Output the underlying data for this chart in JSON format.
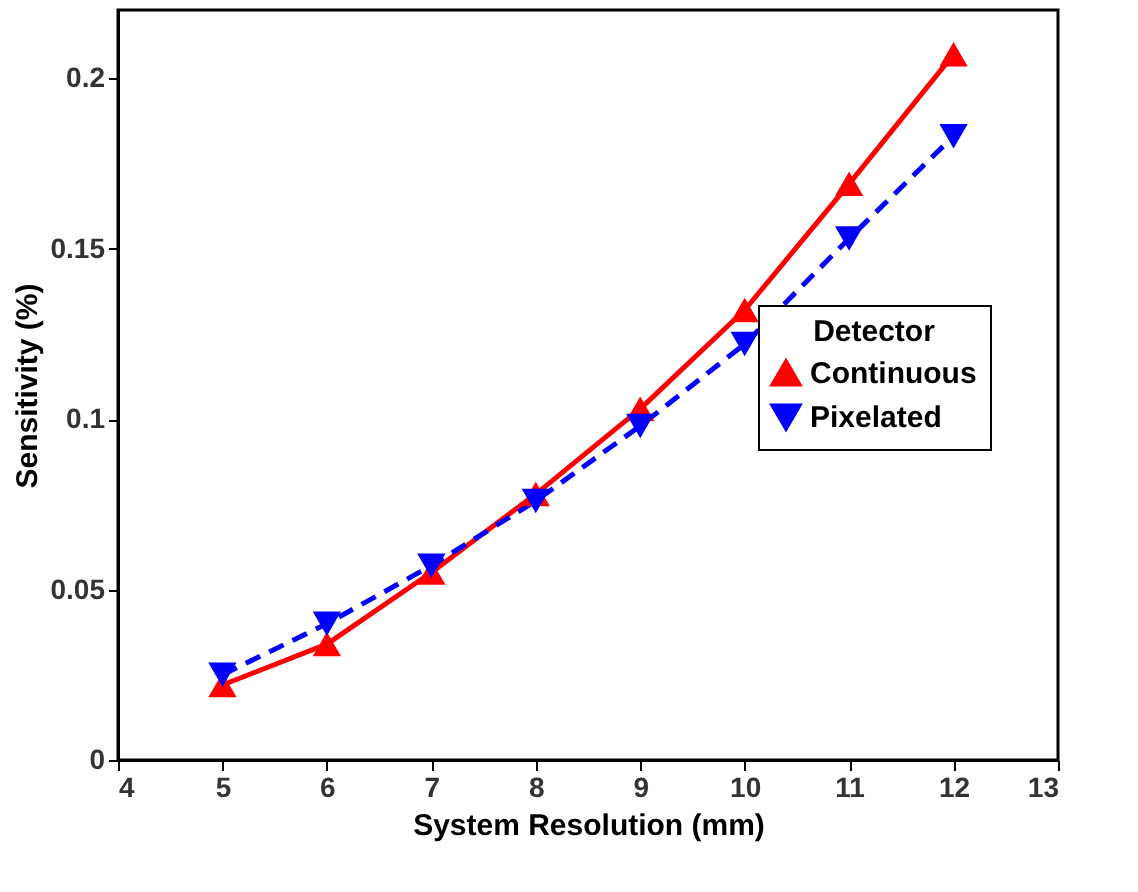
{
  "chart_data": {
    "type": "line",
    "x": [
      5,
      6,
      7,
      8,
      9,
      10,
      11,
      12
    ],
    "series": [
      {
        "name": "Continuous",
        "color": "#ff0000",
        "values": [
          0.022,
          0.034,
          0.055,
          0.078,
          0.103,
          0.132,
          0.169,
          0.207
        ],
        "marker": "triangle",
        "line_style": "solid"
      },
      {
        "name": "Pixelated",
        "color": "#0000ff",
        "values": [
          0.025,
          0.04,
          0.057,
          0.076,
          0.098,
          0.122,
          0.153,
          0.183
        ],
        "marker": "triangle-down",
        "line_style": "dashed"
      }
    ],
    "xlabel": "System Resolution (mm)",
    "ylabel": "Sensitivity (%)",
    "legend_title": "Detector",
    "xlim": [
      4,
      13
    ],
    "xticks": [
      4,
      5,
      6,
      7,
      8,
      9,
      10,
      11,
      12,
      13
    ],
    "ylim": [
      0,
      0.22
    ],
    "yticks": [
      0,
      0.05,
      0.1,
      0.15,
      0.2
    ],
    "grid": false,
    "legend": "right"
  }
}
